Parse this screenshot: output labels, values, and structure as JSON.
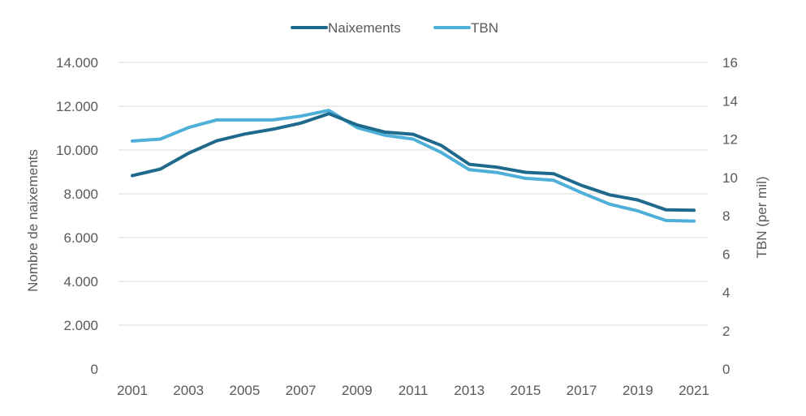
{
  "chart_data": {
    "type": "line",
    "title": "",
    "legend_position": "top-center",
    "grid": true,
    "x": [
      2001,
      2002,
      2003,
      2004,
      2005,
      2006,
      2007,
      2008,
      2009,
      2010,
      2011,
      2012,
      2013,
      2014,
      2015,
      2016,
      2017,
      2018,
      2019,
      2020,
      2021
    ],
    "x_tick_labels": [
      "2001",
      "2003",
      "2005",
      "2007",
      "2009",
      "2011",
      "2013",
      "2015",
      "2017",
      "2019",
      "2021"
    ],
    "ylabel": "Nombre de naixements",
    "y2label": "TBN (per mil)",
    "ylim": [
      0,
      14000
    ],
    "y2lim": [
      0,
      16
    ],
    "y_tick_labels": [
      "0",
      "2.000",
      "4.000",
      "6.000",
      "8.000",
      "10.000",
      "12.000",
      "14.000"
    ],
    "y_ticks": [
      0,
      2000,
      4000,
      6000,
      8000,
      10000,
      12000,
      14000
    ],
    "y2_tick_labels": [
      "0",
      "2",
      "4",
      "6",
      "8",
      "10",
      "12",
      "14",
      "16"
    ],
    "y2_ticks": [
      0,
      2,
      4,
      6,
      8,
      10,
      12,
      14,
      16
    ],
    "series": [
      {
        "name": "Naixements",
        "axis": "left",
        "color": "#1f6a8c",
        "values": [
          8830,
          9130,
          9850,
          10420,
          10730,
          10950,
          11230,
          11660,
          11150,
          10820,
          10720,
          10210,
          9350,
          9210,
          8980,
          8920,
          8380,
          7950,
          7720,
          7270,
          7250
        ]
      },
      {
        "name": "TBN",
        "axis": "right",
        "color": "#4eafd9",
        "values": [
          11.9,
          12.0,
          12.6,
          13.0,
          13.0,
          13.0,
          13.2,
          13.5,
          12.6,
          12.2,
          12.0,
          11.3,
          10.4,
          10.25,
          9.95,
          9.85,
          9.2,
          8.6,
          8.25,
          7.75,
          7.72
        ]
      }
    ]
  }
}
